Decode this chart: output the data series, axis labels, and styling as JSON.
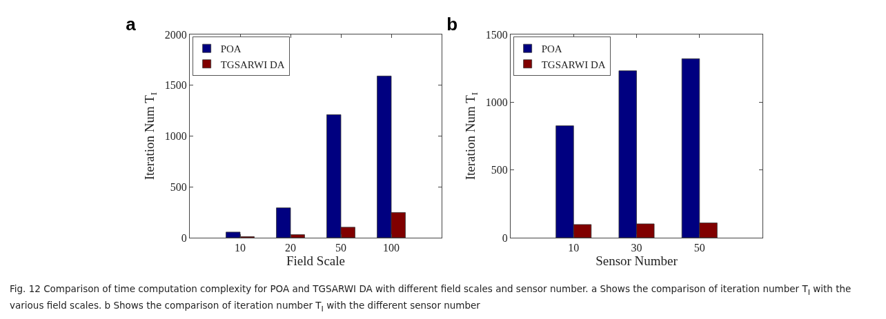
{
  "chart_data": [
    {
      "type": "bar",
      "title": "a",
      "xlabel": "Field Scale",
      "ylabel": "Iteration Num T$_{I}$",
      "categories": [
        "10",
        "20",
        "50",
        "100"
      ],
      "series": [
        {
          "name": "POA",
          "color": "#000080",
          "values": [
            55,
            294,
            1211,
            1591
          ]
        },
        {
          "name": "TGSARWI DA",
          "color": "#800000",
          "values": [
            11,
            30,
            103,
            248
          ]
        }
      ],
      "ylim": [
        0,
        2000
      ],
      "yticks": [
        0,
        500,
        1000,
        1500,
        2000
      ],
      "grid": false,
      "legend": "top left",
      "annotations": [
        "Fig. 12 Comparison of time computation complexity for POA and TGSARWI DA with different field scales and sensor number. a Shows the comparison of iteration number T$_{I}$ with the various field scales. b Shows the comparison of iteration number T$_{I}$ with the different sensor number"
      ]
    },
    {
      "type": "bar",
      "title": "b",
      "xlabel": "Sensor Number",
      "ylabel": "Iteration Num T$_{I}$",
      "categories": [
        "10",
        "30",
        "50"
      ],
      "series": [
        {
          "name": "POA",
          "color": "#000080",
          "values": [
            826,
            1232,
            1321
          ]
        },
        {
          "name": "TGSARWI DA",
          "color": "#800000",
          "values": [
            97,
            102,
            109
          ]
        }
      ],
      "ylim": [
        0,
        1500
      ],
      "yticks": [
        0,
        500,
        1000,
        1500
      ],
      "grid": false,
      "legend": "top left"
    }
  ]
}
